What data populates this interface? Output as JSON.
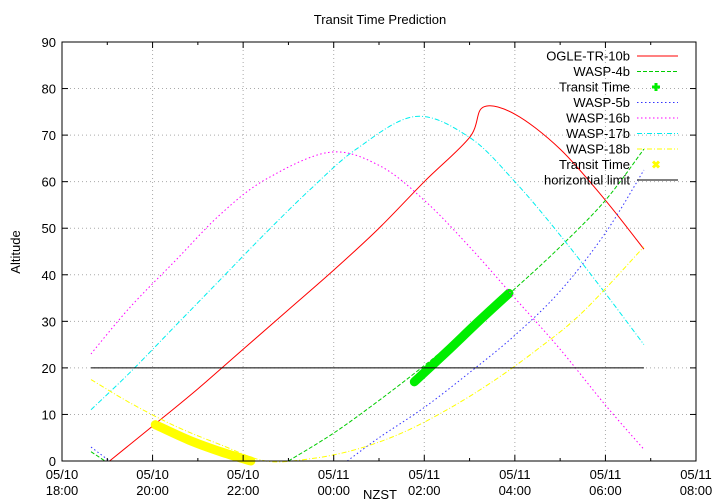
{
  "chart_data": {
    "type": "line",
    "title": "Transit Time Prediction",
    "xlabel": "NZST",
    "ylabel": "Altitude",
    "ylim": [
      0,
      90
    ],
    "yticks": [
      "0",
      "10",
      "20",
      "30",
      "40",
      "50",
      "60",
      "70",
      "80",
      "90"
    ],
    "xticks": [
      {
        "date": "05/10",
        "time": "18:00"
      },
      {
        "date": "05/10",
        "time": "20:00"
      },
      {
        "date": "05/10",
        "time": "22:00"
      },
      {
        "date": "05/11",
        "time": "00:00"
      },
      {
        "date": "05/11",
        "time": "02:00"
      },
      {
        "date": "05/11",
        "time": "04:00"
      },
      {
        "date": "05/11",
        "time": "06:00"
      },
      {
        "date": "05/11",
        "time": "08:00"
      }
    ],
    "xrange_hours_from_1800": [
      0,
      14
    ],
    "grid": true,
    "legend_position": "top-right",
    "series": [
      {
        "name": "OGLE-TR-10b",
        "color": "#ff0000",
        "style": "solid",
        "x_hours": [
          1.05,
          2,
          3,
          4,
          5,
          6,
          7,
          8,
          9,
          9.3,
          10,
          11,
          12,
          12.85
        ],
        "values": [
          0,
          7.5,
          15.5,
          24,
          32.5,
          41,
          50,
          60,
          69.5,
          76,
          74.5,
          67,
          56,
          45.5
        ]
      },
      {
        "name": "WASP-4b",
        "color": "#00cc00",
        "style": "dashed",
        "x_hours": [
          0.64,
          0.95,
          5.0,
          6,
          7,
          8,
          9,
          10,
          11,
          12,
          12.85
        ],
        "values": [
          2,
          0,
          0,
          6,
          13,
          20.5,
          28.5,
          37,
          46,
          56,
          67
        ]
      },
      {
        "name": "Transit Time",
        "color": "#00ee00",
        "style": "marker-plus",
        "x_hours": [
          7.78,
          8.5,
          9.2,
          9.87
        ],
        "values": [
          17,
          23.5,
          30,
          36
        ]
      },
      {
        "name": "WASP-5b",
        "color": "#3333ff",
        "style": "dotted",
        "x_hours": [
          0.64,
          1.05,
          6.3,
          7,
          8,
          9,
          10,
          11,
          12,
          12.85
        ],
        "values": [
          3,
          0,
          0,
          5,
          11.5,
          19,
          27,
          36.5,
          49,
          62.5
        ]
      },
      {
        "name": "WASP-16b",
        "color": "#ff00ff",
        "style": "dotted",
        "x_hours": [
          0.64,
          1.5,
          2.5,
          3.5,
          4.5,
          5.9,
          7,
          8,
          9,
          10,
          11,
          12,
          12.85
        ],
        "values": [
          23,
          33,
          43,
          53,
          60.5,
          66.3,
          63.5,
          56,
          46,
          35,
          24,
          12,
          2.5
        ]
      },
      {
        "name": "WASP-17b",
        "color": "#00eeee",
        "style": "dash-dot",
        "x_hours": [
          0.64,
          1.5,
          2.5,
          3.5,
          4.5,
          5.5,
          6.5,
          7.8,
          9,
          10,
          11,
          12,
          12.85
        ],
        "values": [
          11,
          19,
          29,
          39,
          49,
          58.5,
          67,
          74,
          69.5,
          60,
          48.5,
          36,
          25
        ]
      },
      {
        "name": "WASP-18b",
        "color": "#ffff00",
        "style": "dash-dot",
        "x_hours": [
          0.64,
          1.5,
          2.5,
          3.5,
          4.5,
          5.5,
          6.5,
          7.5,
          8.5,
          9.5,
          10.5,
          11.5,
          12.85
        ],
        "values": [
          17.5,
          12.5,
          7.5,
          3.5,
          0,
          0.5,
          2.5,
          6,
          11,
          17,
          24,
          32,
          46
        ]
      },
      {
        "name": "Transit Time",
        "color": "#ffff00",
        "style": "marker-cross",
        "x_hours": [
          2.06,
          2.8,
          3.5,
          4.17
        ],
        "values": [
          7.8,
          4.5,
          2,
          0
        ]
      },
      {
        "name": "horizontial limit",
        "color": "#000000",
        "style": "solid",
        "x_hours": [
          0.64,
          12.85
        ],
        "values": [
          20,
          20
        ]
      }
    ]
  }
}
